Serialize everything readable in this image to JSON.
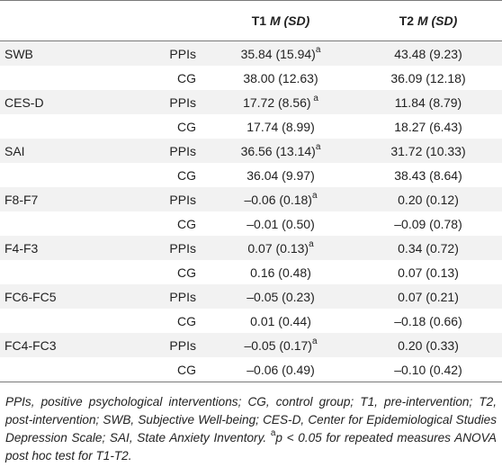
{
  "table": {
    "header": {
      "col1": "",
      "col2": "",
      "t1_prefix": "T1",
      "t1_stat": "M (SD)",
      "t2_prefix": "T2",
      "t2_stat": "M (SD)"
    },
    "rows": [
      {
        "variable": "SWB",
        "group": "PPIs",
        "t1": "35.84 (15.94)",
        "t1_sup": "a",
        "t2": "43.48 (9.23)",
        "t2_sup": ""
      },
      {
        "variable": "",
        "group": "CG",
        "t1": "38.00 (12.63)",
        "t1_sup": "",
        "t2": "36.09 (12.18)",
        "t2_sup": ""
      },
      {
        "variable": "CES-D",
        "group": "PPIs",
        "t1": "17.72 (8.56)",
        "t1_sup": " a",
        "t2": "11.84 (8.79)",
        "t2_sup": ""
      },
      {
        "variable": "",
        "group": "CG",
        "t1": "17.74 (8.99)",
        "t1_sup": "",
        "t2": "18.27 (6.43)",
        "t2_sup": ""
      },
      {
        "variable": "SAI",
        "group": "PPIs",
        "t1": "36.56 (13.14)",
        "t1_sup": "a",
        "t2": "31.72 (10.33)",
        "t2_sup": ""
      },
      {
        "variable": "",
        "group": "CG",
        "t1": "36.04 (9.97)",
        "t1_sup": "",
        "t2": "38.43 (8.64)",
        "t2_sup": ""
      },
      {
        "variable": "F8-F7",
        "group": "PPIs",
        "t1": "–0.06 (0.18)",
        "t1_sup": "a",
        "t2": "0.20 (0.12)",
        "t2_sup": ""
      },
      {
        "variable": "",
        "group": "CG",
        "t1": "–0.01 (0.50)",
        "t1_sup": "",
        "t2": "–0.09 (0.78)",
        "t2_sup": ""
      },
      {
        "variable": "F4-F3",
        "group": "PPIs",
        "t1": "0.07 (0.13)",
        "t1_sup": "a",
        "t2": "0.34 (0.72)",
        "t2_sup": ""
      },
      {
        "variable": "",
        "group": "CG",
        "t1": "0.16 (0.48)",
        "t1_sup": "",
        "t2": "0.07 (0.13)",
        "t2_sup": ""
      },
      {
        "variable": "FC6-FC5",
        "group": "PPIs",
        "t1": "–0.05 (0.23)",
        "t1_sup": "",
        "t2": "0.07 (0.21)",
        "t2_sup": ""
      },
      {
        "variable": "",
        "group": "CG",
        "t1": "0.01 (0.44)",
        "t1_sup": "",
        "t2": "–0.18 (0.66)",
        "t2_sup": ""
      },
      {
        "variable": "FC4-FC3",
        "group": "PPIs",
        "t1": "–0.05 (0.17)",
        "t1_sup": "a",
        "t2": "0.20 (0.33)",
        "t2_sup": ""
      },
      {
        "variable": "",
        "group": "CG",
        "t1": "–0.06 (0.49)",
        "t1_sup": "",
        "t2": "–0.10 (0.42)",
        "t2_sup": ""
      }
    ]
  },
  "footnote": {
    "main": "PPIs, positive psychological interventions; CG, control group; T1, pre-intervention; T2, post-intervention; SWB, Subjective Well-being; CES-D, Center for Epidemiological Studies Depression Scale; SAI, State Anxiety Inventory. ",
    "sup": "a",
    "tail": "p < 0.05 for repeated measures ANOVA post hoc test for T1-T2."
  }
}
